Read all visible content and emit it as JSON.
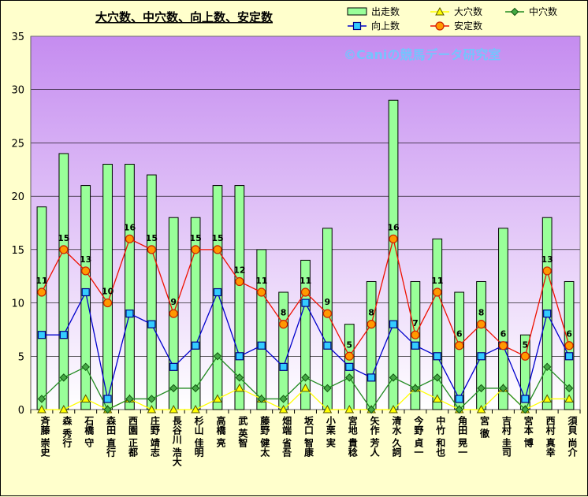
{
  "chart_data": {
    "type": "bar-line",
    "title": "大穴数、中穴数、向上数、安定数",
    "watermark": "©Caniの競馬データ研究室",
    "ylim": [
      0,
      35
    ],
    "yticks": [
      0,
      5,
      10,
      15,
      20,
      25,
      30,
      35
    ],
    "grid": true,
    "legend_position": "top-right",
    "categories": [
      "斉藤 崇史",
      "森 秀行",
      "石橋 守",
      "森田 直行",
      "西園 正都",
      "庄野 靖志",
      "長谷川 浩大",
      "杉山 佳明",
      "高橋 亮",
      "武 英智",
      "藤野 健太",
      "畑端 省吾",
      "坂口 智康",
      "小栗 実",
      "宮地 貴稔",
      "矢作 芳人",
      "清水 久詞",
      "今野 貞一",
      "中竹 和也",
      "角田 晃一",
      "宮 徹",
      "吉村 圭司",
      "宮本 博",
      "西村 真幸",
      "須貝 尚介"
    ],
    "series": [
      {
        "name": "出走数",
        "kind": "bar",
        "color": "#99ff99",
        "values": [
          19,
          24,
          21,
          23,
          23,
          22,
          18,
          18,
          21,
          21,
          15,
          11,
          14,
          17,
          8,
          12,
          29,
          12,
          16,
          11,
          12,
          17,
          7,
          18,
          12
        ]
      },
      {
        "name": "大穴数",
        "kind": "line",
        "color": "#ffff00",
        "marker": "triangle",
        "values": [
          0,
          0,
          1,
          0,
          1,
          0,
          0,
          0,
          1,
          2,
          1,
          0,
          2,
          0,
          0,
          0,
          0,
          2,
          1,
          0,
          0,
          2,
          0,
          1,
          1
        ]
      },
      {
        "name": "中穴数",
        "kind": "line",
        "color": "#228b22",
        "marker": "diamond",
        "values": [
          1,
          3,
          4,
          0,
          1,
          1,
          2,
          2,
          5,
          3,
          1,
          1,
          3,
          2,
          3,
          0,
          3,
          2,
          3,
          0,
          2,
          2,
          0,
          4,
          2
        ]
      },
      {
        "name": "向上数",
        "kind": "line",
        "color": "#0000cc",
        "marker": "square",
        "values": [
          7,
          7,
          11,
          1,
          9,
          8,
          4,
          6,
          11,
          5,
          6,
          4,
          10,
          6,
          4,
          3,
          8,
          6,
          5,
          1,
          5,
          6,
          1,
          9,
          5
        ]
      },
      {
        "name": "安定数",
        "kind": "line",
        "color": "#ee1100",
        "marker": "circle",
        "labeled": true,
        "values": [
          11,
          15,
          13,
          10,
          16,
          15,
          9,
          15,
          15,
          12,
          11,
          8,
          11,
          9,
          5,
          8,
          16,
          7,
          11,
          6,
          8,
          6,
          5,
          13,
          6
        ]
      }
    ]
  }
}
